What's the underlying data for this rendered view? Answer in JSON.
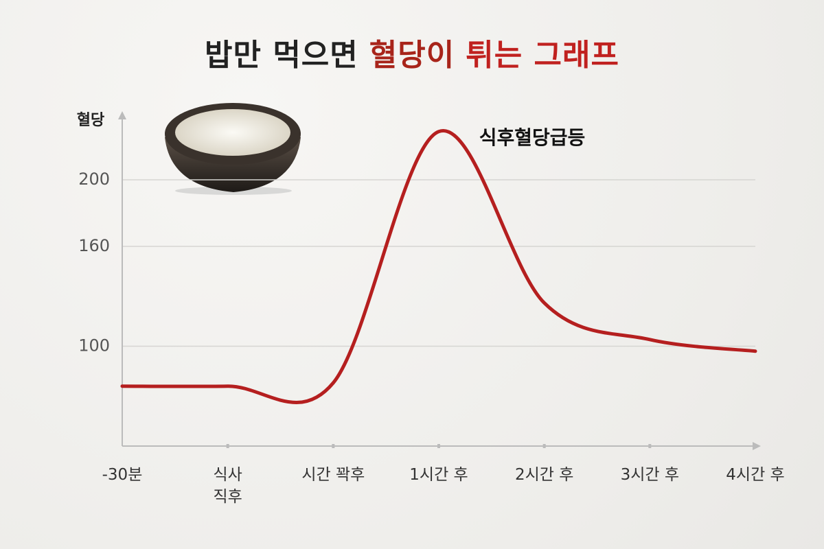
{
  "chart_data": {
    "type": "line",
    "title": [
      {
        "text": "밥만 먹으면",
        "color": "#222222"
      },
      {
        "text": "혈당이",
        "color": "#a8241a"
      },
      {
        "text": "튀는 그래프",
        "color": "#c0211f"
      }
    ],
    "y_label": "혈당",
    "annotation": "식후혈당급등",
    "categories": [
      "-30분",
      "식사\n직후",
      "시간 꽉후",
      "1시간 후",
      "2시간 후",
      "3시간 후",
      "4시간 후"
    ],
    "series": [
      {
        "name": "혈당",
        "color": "#b51f1f",
        "values": [
          76,
          76,
          78,
          229,
          126,
          104,
          97
        ]
      }
    ],
    "ylim": [
      40,
      240
    ],
    "yticks": [
      100,
      160,
      200
    ],
    "grid": true
  }
}
